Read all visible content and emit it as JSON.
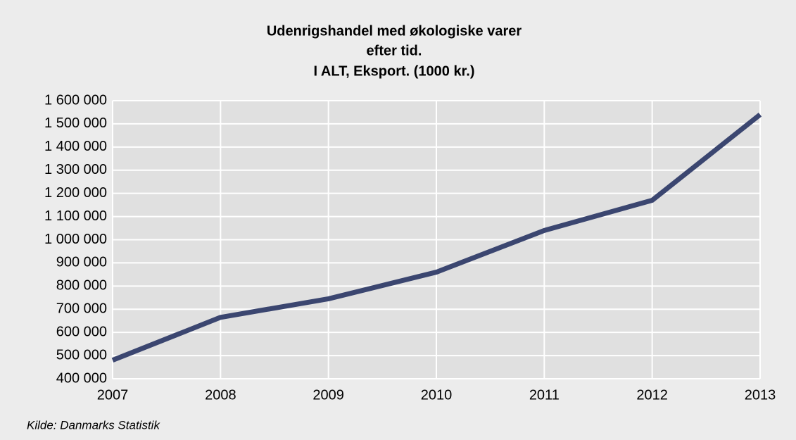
{
  "chart_data": {
    "type": "line",
    "title": [
      "Udenrigshandel med økologiske varer",
      "efter tid.",
      "I ALT, Eksport. (1000 kr.)"
    ],
    "x": [
      2007,
      2008,
      2009,
      2010,
      2011,
      2012,
      2013
    ],
    "series": [
      {
        "name": "I ALT, Eksport",
        "color": "#3b4670",
        "values": [
          480000,
          665000,
          745000,
          860000,
          1040000,
          1170000,
          1540000
        ]
      }
    ],
    "xlim": [
      2007,
      2013
    ],
    "xticks": [
      2007,
      2008,
      2009,
      2010,
      2011,
      2012,
      2013
    ],
    "ylim": [
      400000,
      1600000
    ],
    "yticks": [
      {
        "value": 400000,
        "label": "400 000"
      },
      {
        "value": 500000,
        "label": "500 000"
      },
      {
        "value": 600000,
        "label": "600 000"
      },
      {
        "value": 700000,
        "label": "700 000"
      },
      {
        "value": 800000,
        "label": "800 000"
      },
      {
        "value": 900000,
        "label": "900 000"
      },
      {
        "value": 1000000,
        "label": "1 000 000"
      },
      {
        "value": 1100000,
        "label": "1 100 000"
      },
      {
        "value": 1200000,
        "label": "1 200 000"
      },
      {
        "value": 1300000,
        "label": "1 300 000"
      },
      {
        "value": 1400000,
        "label": "1 400 000"
      },
      {
        "value": 1500000,
        "label": "1 500 000"
      },
      {
        "value": 1600000,
        "label": "1 600 000"
      }
    ],
    "grid": true,
    "source": "Kilde: Danmarks Statistik"
  }
}
